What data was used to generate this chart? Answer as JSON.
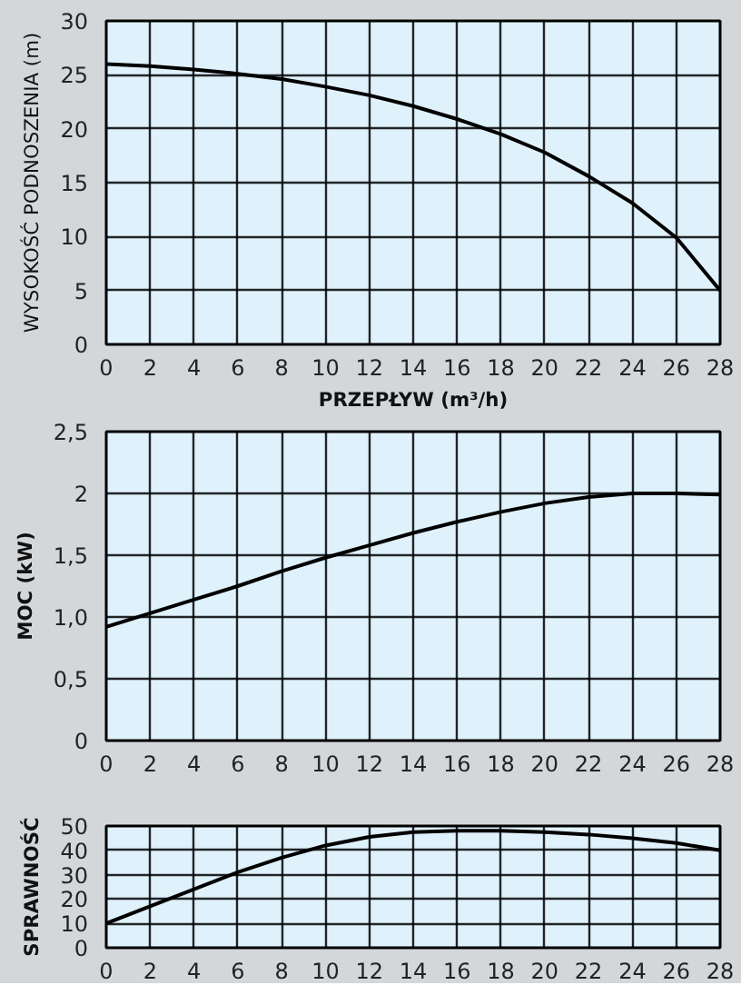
{
  "chart_data": [
    {
      "type": "line",
      "xlabel": "PRZEPŁYW (m³/h)",
      "ylabel": "WYSOKOŚĆ PODNOSZENIA (m)",
      "x": [
        0,
        2,
        4,
        6,
        8,
        10,
        12,
        14,
        16,
        18,
        20,
        22,
        24,
        26,
        28
      ],
      "series": [
        {
          "color": "#000000",
          "values": [
            26,
            25.8,
            25.5,
            25.1,
            24.6,
            23.9,
            23.1,
            22.1,
            20.9,
            19.5,
            17.8,
            15.6,
            13.1,
            9.9,
            5
          ]
        }
      ],
      "xlim": [
        0,
        28
      ],
      "xticks": [
        0,
        2,
        4,
        6,
        8,
        10,
        12,
        14,
        16,
        18,
        20,
        22,
        24,
        26,
        28
      ],
      "ylim": [
        0,
        30
      ],
      "yticks": [
        0,
        5,
        10,
        15,
        20,
        25,
        30
      ],
      "grid": true
    },
    {
      "type": "line",
      "ylabel": "MOC (kW)",
      "x": [
        0,
        2,
        4,
        6,
        8,
        10,
        12,
        14,
        16,
        18,
        20,
        22,
        24,
        26,
        28
      ],
      "series": [
        {
          "color": "#000000",
          "values": [
            0.92,
            1.03,
            1.14,
            1.25,
            1.37,
            1.48,
            1.58,
            1.68,
            1.77,
            1.85,
            1.92,
            1.97,
            2.0,
            2.0,
            1.99
          ]
        }
      ],
      "xlim": [
        0,
        28
      ],
      "xticks": [
        0,
        2,
        4,
        6,
        8,
        10,
        12,
        14,
        16,
        18,
        20,
        22,
        24,
        26,
        28
      ],
      "ylim": [
        0,
        2.5
      ],
      "yticks": [
        0,
        {
          "value": 0.5,
          "label": "0,5"
        },
        {
          "value": 1,
          "label": "1,0"
        },
        {
          "value": 1.5,
          "label": "1,5"
        },
        2,
        {
          "value": 2.5,
          "label": "2,5"
        }
      ],
      "grid": true
    },
    {
      "type": "line",
      "ylabel": "SPRAWNOŚĆ",
      "x": [
        0,
        2,
        4,
        6,
        8,
        10,
        12,
        14,
        16,
        18,
        20,
        22,
        24,
        26,
        28
      ],
      "series": [
        {
          "color": "#000000",
          "values": [
            10,
            17,
            24,
            31,
            37,
            42,
            45.5,
            47.5,
            48,
            48,
            47.5,
            46.5,
            45,
            43,
            40
          ]
        }
      ],
      "xlim": [
        0,
        28
      ],
      "xticks": [
        0,
        2,
        4,
        6,
        8,
        10,
        12,
        14,
        16,
        18,
        20,
        22,
        24,
        26,
        28
      ],
      "ylim": [
        0,
        50
      ],
      "yticks": [
        0,
        10,
        20,
        30,
        40,
        50
      ],
      "grid": true
    }
  ]
}
